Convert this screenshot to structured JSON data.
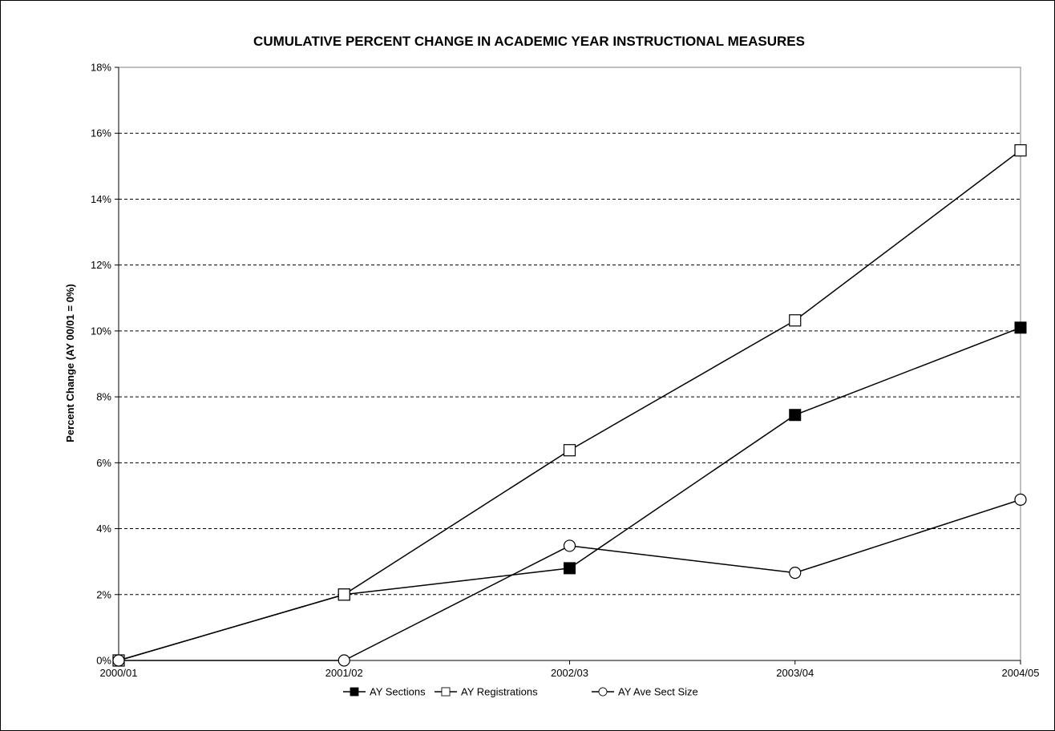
{
  "chart_data": {
    "type": "line",
    "title": "CUMULATIVE PERCENT CHANGE IN ACADEMIC YEAR INSTRUCTIONAL MEASURES",
    "xlabel": "",
    "ylabel": "Percent Change (AY 00/01 = 0%)",
    "categories": [
      "2000/01",
      "2001/02",
      "2002/03",
      "2003/04",
      "2004/05"
    ],
    "ylim": [
      0,
      18
    ],
    "y_ticks": [
      "0%",
      "2%",
      "4%",
      "6%",
      "8%",
      "10%",
      "12%",
      "14%",
      "16%",
      "18%"
    ],
    "y_tick_values": [
      0,
      2,
      4,
      6,
      8,
      10,
      12,
      14,
      16,
      18
    ],
    "grid": "horizontal dashed",
    "legend_position": "bottom",
    "series": [
      {
        "name": "AY Sections",
        "marker": "filled-square",
        "values": [
          0,
          2.0,
          2.8,
          7.45,
          10.1
        ]
      },
      {
        "name": "AY Registrations",
        "marker": "open-square",
        "values": [
          0,
          2.0,
          6.38,
          10.32,
          15.48
        ]
      },
      {
        "name": "AY Ave Sect Size",
        "marker": "open-circle",
        "values": [
          0,
          0,
          3.48,
          2.66,
          4.88
        ]
      }
    ],
    "colors": {
      "line": "#000000",
      "grid": "#000000",
      "background": "#ffffff"
    }
  }
}
